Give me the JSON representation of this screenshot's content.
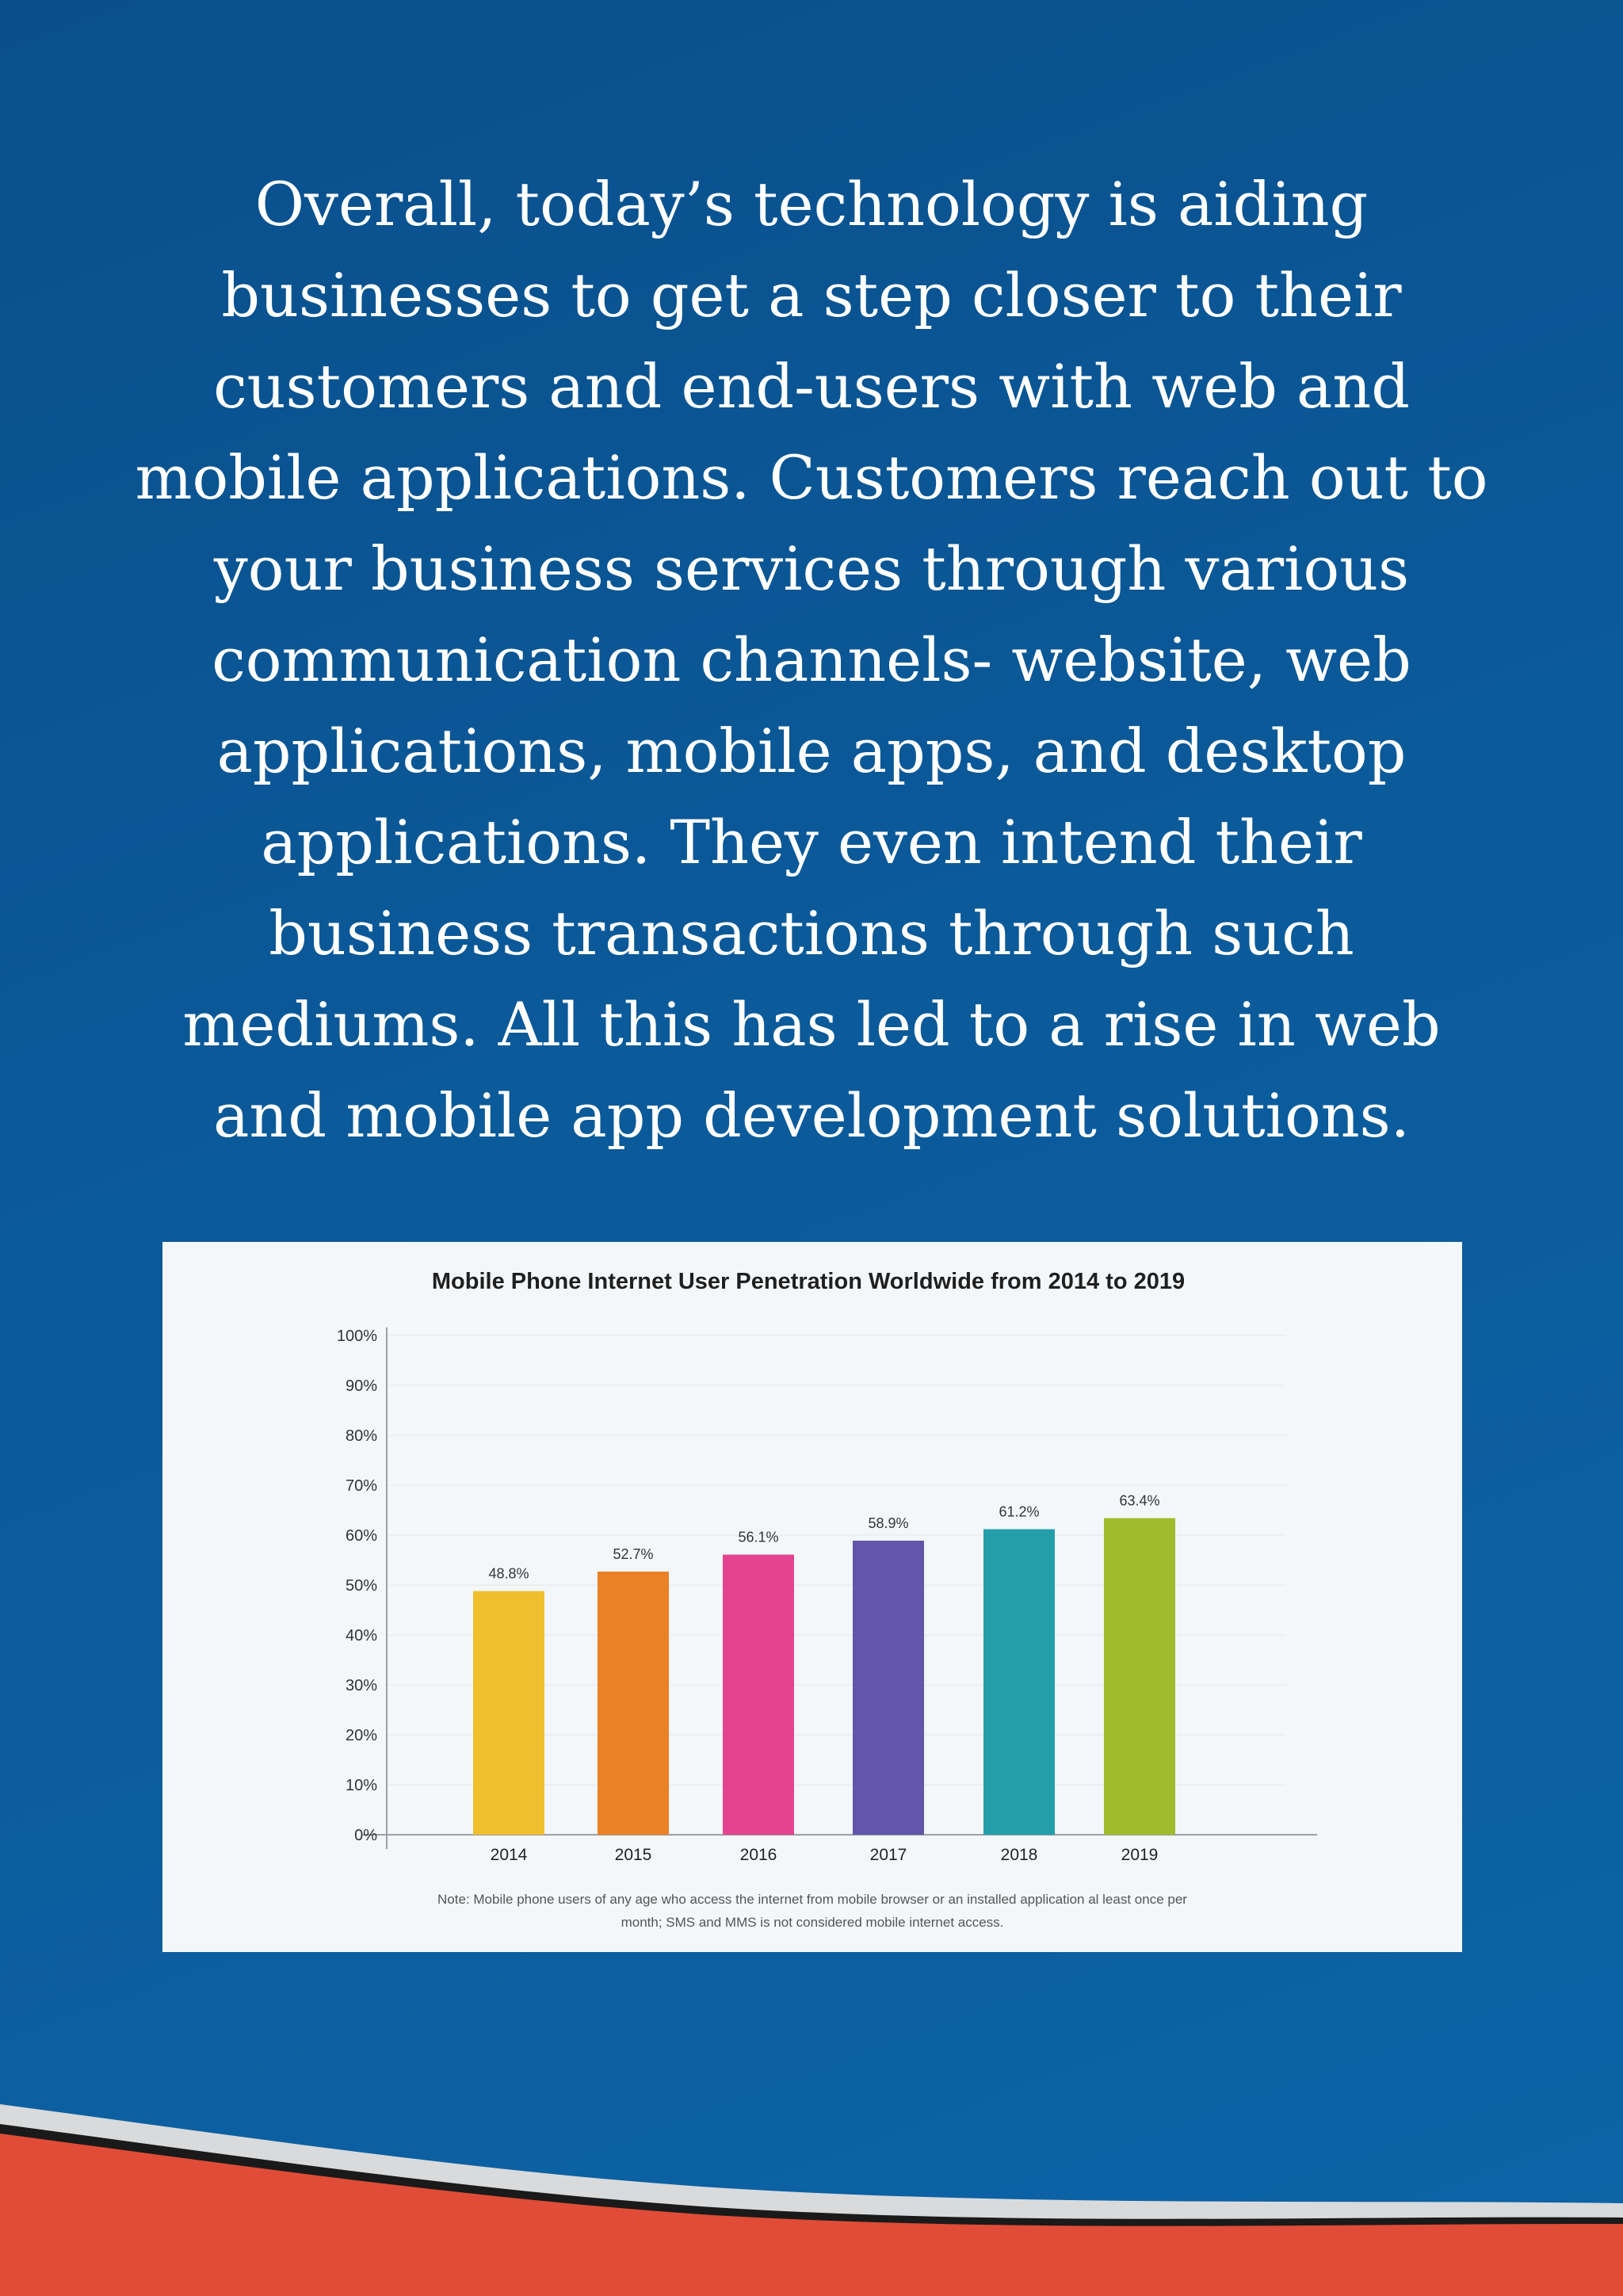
{
  "intro": {
    "paragraph": "Overall, today’s technology is aiding businesses to get a step closer to their customers and end-users with web and mobile applications. Customers reach out to your business services through various communication channels- website, web applications, mobile apps, and desktop applications. They even intend their business transactions through such mediums. All this has led to a rise in web and mobile app development solutions."
  },
  "chart_data": {
    "type": "bar",
    "title": "Mobile Phone Internet User Penetration Worldwide from 2014 to 2019",
    "categories": [
      "2014",
      "2015",
      "2016",
      "2017",
      "2018",
      "2019"
    ],
    "values": [
      48.8,
      52.7,
      56.1,
      58.9,
      61.2,
      63.4
    ],
    "value_labels": [
      "48.8%",
      "52.7%",
      "56.1%",
      "58.9%",
      "61.2%",
      "63.4%"
    ],
    "bar_colors": [
      "#f0bf2e",
      "#ea8125",
      "#e3438f",
      "#6355a9",
      "#249faa",
      "#a0bc2c"
    ],
    "ylim": [
      0,
      100
    ],
    "yticks": [
      "0%",
      "10%",
      "20%",
      "30%",
      "40%",
      "50%",
      "60%",
      "70%",
      "80%",
      "90%",
      "100%"
    ],
    "xlabel": "",
    "ylabel": "",
    "grid": true,
    "note": [
      "Note: Mobile phone users of any age who access the internet from mobile browser or an installed application al least once per",
      "month; SMS and MMS is not considered mobile internet access."
    ]
  },
  "colors": {
    "background": "#0b5a9a",
    "text": "#ffffff",
    "card": "#f4f7f9",
    "accent_red": "#e04c37"
  }
}
